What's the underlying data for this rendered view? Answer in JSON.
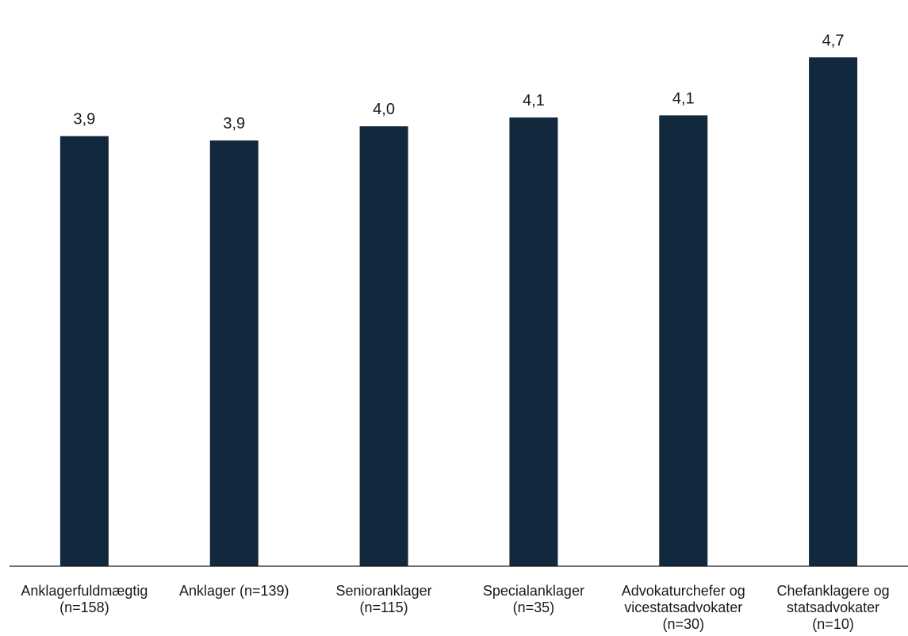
{
  "chart_data": {
    "type": "bar",
    "categories": [
      [
        "Anklagerfuldmægtig",
        "(n=158)"
      ],
      [
        "Anklager (n=139)"
      ],
      [
        "Senioranklager",
        "(n=115)"
      ],
      [
        "Specialanklager",
        "(n=35)"
      ],
      [
        "Advokaturchefer og",
        "vicestatsadvokater",
        "(n=30)"
      ],
      [
        "Chefanklagere og",
        "statsadvokater",
        "(n=10)"
      ]
    ],
    "values": [
      3.93,
      3.89,
      4.02,
      4.1,
      4.12,
      4.65
    ],
    "data_labels": [
      "3,9",
      "3,9",
      "4,0",
      "4,1",
      "4,1",
      "4,7"
    ],
    "title": "",
    "xlabel": "",
    "ylabel": "",
    "ylim": [
      0,
      5
    ],
    "grid": false,
    "legend": "none",
    "colors": {
      "bar": "#12293d",
      "axis": "#1a1a1a",
      "text": "#1a1a1a"
    }
  }
}
